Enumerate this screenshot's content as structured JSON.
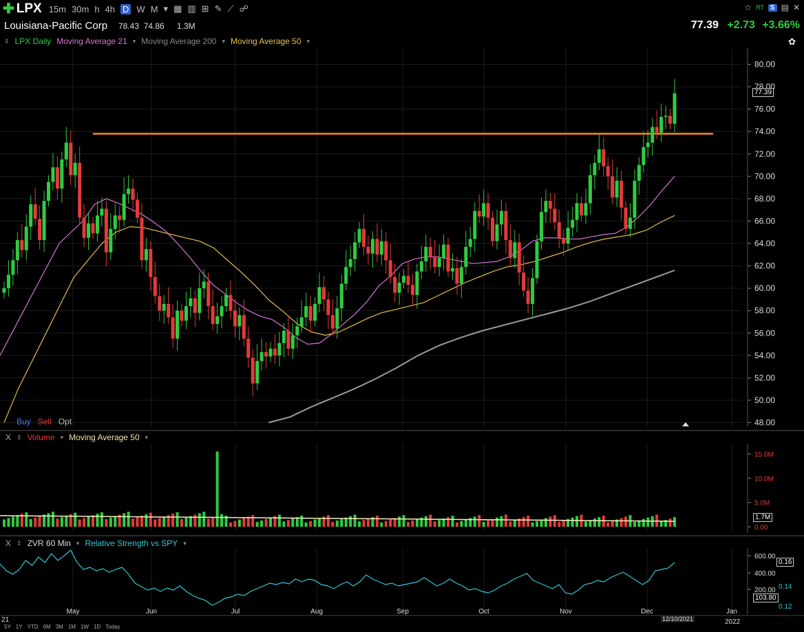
{
  "toolbar": {
    "symbol": "LPX",
    "timeframes": [
      "15m",
      "30m",
      "h",
      "4h",
      "D",
      "W",
      "M"
    ],
    "active_timeframe": "D",
    "rt_label": "RT",
    "s_label": "S"
  },
  "info": {
    "company": "Louisiana-Pacific Corp",
    "high": "78.43",
    "low": "74.86",
    "volume": "1.3M",
    "last": "77.39",
    "change": "+2.73",
    "change_pct": "+3.66%"
  },
  "legend": {
    "price": "LPX Daily",
    "ma21": "Moving Average 21",
    "ma200": "Moving Average 200",
    "ma50": "Moving Average 50"
  },
  "order": {
    "buy": "Buy",
    "sell": "Sell",
    "opt": "Opt"
  },
  "volume_pane": {
    "close": "X",
    "label": "Volume",
    "ma": "Moving Average 50",
    "current": "1.7M"
  },
  "rs_pane": {
    "close": "X",
    "label": "ZVR 60 Min",
    "rs": "Relative Strength vs SPY",
    "current": "0.16",
    "current_zvr": "103.80"
  },
  "footer": {
    "date": "12/10/2021",
    "year_start": "21",
    "year_end": "2022",
    "periods": [
      "5Y",
      "1Y",
      "YTD",
      "6M",
      "3M",
      "1M",
      "1W",
      "1D",
      "Today"
    ]
  },
  "colors": {
    "up": "#2ecc40",
    "down": "#e23b3b",
    "ma21": "#d675d6",
    "ma50": "#e8c048",
    "ma200": "#9a9a9a",
    "resistance": "#ff8a1c",
    "rs": "#30c8d8",
    "vol_ma": "#f5eec0"
  },
  "chart_data": [
    {
      "type": "candlestick",
      "title": "LPX Daily",
      "y_ticks": [
        "80.00",
        "78.00",
        "76.00",
        "74.00",
        "72.00",
        "70.00",
        "68.00",
        "66.00",
        "64.00",
        "62.00",
        "60.00",
        "58.00",
        "56.00",
        "54.00",
        "52.00",
        "50.00",
        "48.00"
      ],
      "ylim": [
        48,
        80
      ],
      "x_ticks": [
        "May",
        "Jun",
        "Jul",
        "Aug",
        "Sep",
        "Oct",
        "Nov",
        "Dec",
        "Jan"
      ],
      "last_value": "77.39",
      "resistance_level": 73.8,
      "close_approx": [
        60.0,
        61.2,
        62.5,
        64.3,
        63.4,
        65.5,
        67.5,
        66.2,
        64.3,
        67.8,
        69.5,
        70.8,
        68.9,
        71.5,
        73.0,
        70.1,
        71.2,
        66.3,
        64.5,
        65.8,
        64.9,
        66.5,
        67.1,
        63.2,
        65.3,
        66.5,
        66.1,
        68.4,
        68.9,
        67.9,
        66.3,
        62.5,
        63.5,
        61.0,
        59.3,
        58.0,
        58.6,
        57.4,
        55.5,
        58.0,
        57.1,
        58.4,
        59.1,
        57.8,
        60.0,
        60.6,
        58.4,
        56.8,
        57.5,
        58.4,
        59.4,
        58.0,
        56.6,
        57.6,
        55.5,
        53.8,
        51.5,
        53.5,
        54.3,
        53.9,
        54.6,
        54.0,
        55.1,
        56.2,
        54.6,
        55.8,
        56.6,
        57.4,
        58.4,
        57.1,
        58.6,
        60.1,
        59.0,
        57.6,
        56.4,
        58.2,
        60.4,
        61.9,
        62.6,
        64.1,
        65.3,
        63.7,
        63.1,
        64.4,
        63.0,
        64.2,
        62.5,
        61.0,
        59.6,
        60.5,
        61.1,
        60.3,
        59.4,
        61.5,
        62.4,
        63.7,
        62.8,
        61.9,
        62.7,
        63.9,
        61.5,
        61.8,
        60.4,
        61.9,
        63.7,
        64.4,
        66.9,
        66.4,
        67.6,
        66.3,
        64.2,
        65.7,
        66.9,
        64.3,
        62.7,
        64.1,
        61.4,
        59.8,
        58.6,
        60.9,
        64.2,
        66.8,
        67.8,
        67.1,
        65.9,
        64.5,
        64.0,
        65.4,
        66.1,
        67.6,
        66.5,
        67.6,
        70.1,
        71.2,
        72.4,
        70.9,
        70.0,
        68.1,
        69.6,
        67.2,
        65.3,
        66.3,
        69.6,
        71.0,
        72.6,
        73.0,
        74.4,
        73.9,
        75.3,
        75.4,
        74.7,
        77.4
      ],
      "ma21_approx": [
        54,
        56,
        58,
        60,
        62,
        64,
        65,
        66,
        67.5,
        68.0,
        67.6,
        67.1,
        66.6,
        65.9,
        65.1,
        64.0,
        62.8,
        61.5,
        60.3,
        59.5,
        58.7,
        58.0,
        57.5,
        57.2,
        56.5,
        55.6,
        55.0,
        55.1,
        55.9,
        56.8,
        57.7,
        58.8,
        60.2,
        61.1,
        62.2,
        62.6,
        62.8,
        62.8,
        62.6,
        62.4,
        62.2,
        62.3,
        62.4,
        62.8,
        63.4,
        64.2,
        64.5,
        64.5,
        64.4,
        64.4,
        64.6,
        64.8,
        64.9,
        65.5,
        66.4,
        67.5,
        68.8,
        70.0
      ],
      "ma50_approx": [
        48,
        51,
        53.5,
        56,
        58.5,
        61,
        62.5,
        64,
        65.0,
        65.5,
        65.4,
        65.1,
        64.8,
        64.5,
        64.2,
        63.6,
        62.5,
        61.4,
        60.2,
        58.9,
        57.9,
        56.8,
        56.1,
        55.8,
        56.1,
        56.7,
        57.3,
        57.8,
        58.1,
        58.4,
        58.7,
        59.3,
        59.9,
        60.5,
        61.0,
        61.5,
        61.9,
        62.1,
        62.4,
        62.8,
        63.2,
        63.7,
        64.1,
        64.4,
        64.6,
        64.8,
        65.2,
        65.9,
        66.5
      ],
      "ma200_approx": [
        48.0,
        48.5,
        49.4,
        50.2,
        51.0,
        51.9,
        52.9,
        54.0,
        54.9,
        55.6,
        56.2,
        56.7,
        57.2,
        57.7,
        58.2,
        58.8,
        59.5,
        60.2,
        60.9,
        61.6
      ]
    },
    {
      "type": "bar",
      "title": "Volume",
      "y_ticks": [
        "15.0M",
        "10.0M",
        "5.0M",
        "0.00"
      ],
      "ylim": [
        0,
        16
      ],
      "note_approx": "Mostly 0.7M–2.5M daily with a single spike of about 15.5M near late June",
      "spike_value_millions": 15.5
    },
    {
      "type": "line",
      "title": "ZVR 60 Min / Relative Strength vs SPY",
      "y_ticks_left": [
        "600.00",
        "400.00",
        "200.00"
      ],
      "y_ticks_right": [
        "0.16",
        "0.14",
        "0.12"
      ],
      "last_values": [
        "0.16",
        "103.80"
      ]
    }
  ]
}
